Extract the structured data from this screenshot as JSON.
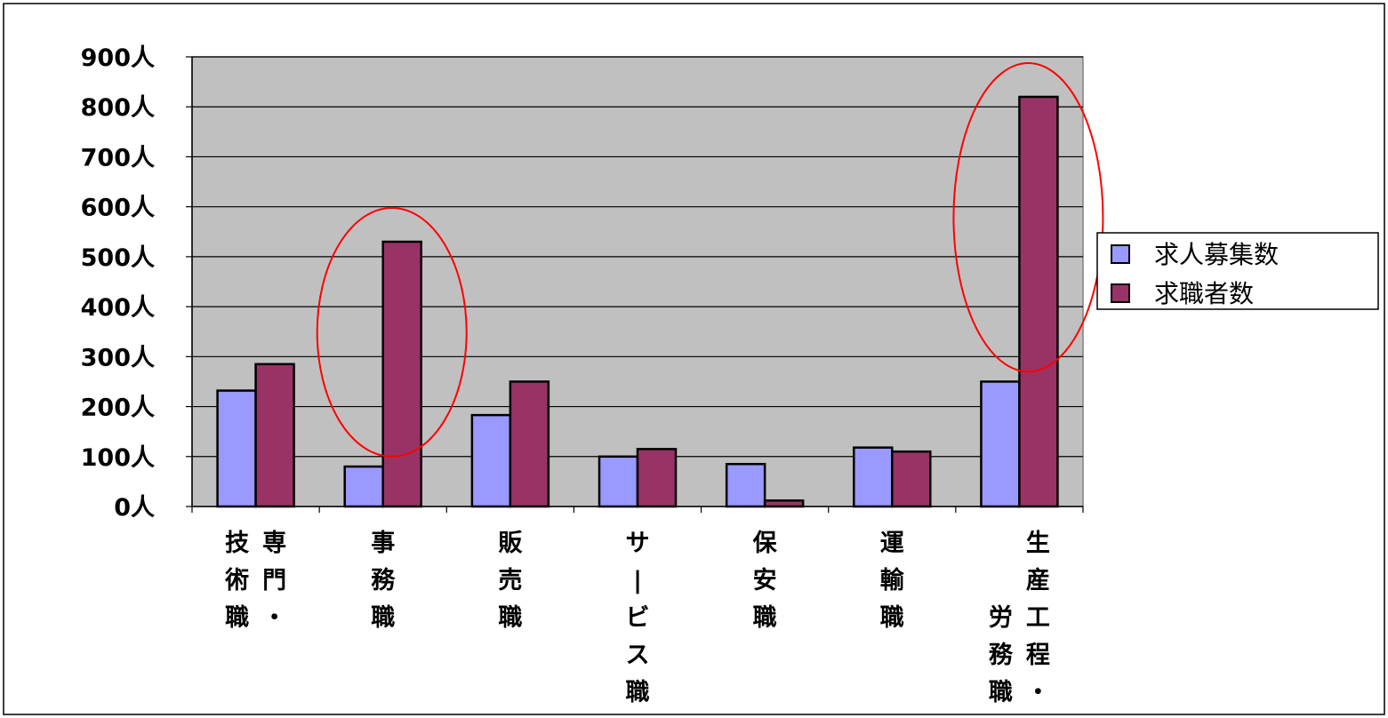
{
  "chart_data": {
    "type": "bar",
    "title": "",
    "xlabel": "",
    "ylabel": "",
    "ylim": [
      0,
      900
    ],
    "yticks": [
      0,
      100,
      200,
      300,
      400,
      500,
      600,
      700,
      800,
      900
    ],
    "y_unit": "人",
    "grid": "horizontal",
    "legend_position": "right",
    "categories": [
      [
        "技術職",
        "専門・"
      ],
      [
        "事務職"
      ],
      [
        "販売職"
      ],
      [
        "サービス職"
      ],
      [
        "保安職"
      ],
      [
        "運輸職"
      ],
      [
        "労務職",
        "生産工程・"
      ]
    ],
    "series": [
      {
        "name": "求人募集数",
        "color": "#9999ff",
        "values": [
          232,
          80,
          183,
          100,
          85,
          118,
          250
        ]
      },
      {
        "name": "求職者数",
        "color": "#993366",
        "values": [
          285,
          530,
          250,
          115,
          12,
          110,
          820
        ]
      }
    ],
    "highlight_categories": [
      1,
      6
    ],
    "colors": {
      "plot_bg": "#c0c0c0",
      "highlight": "#ff0000",
      "axis": "#000000"
    }
  }
}
